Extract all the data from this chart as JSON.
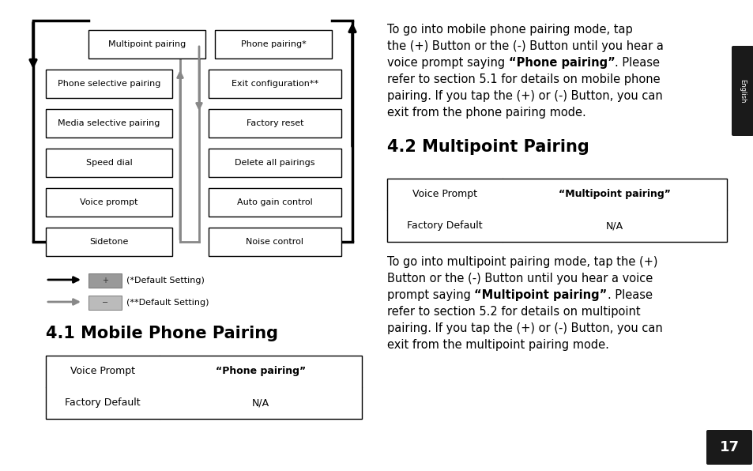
{
  "bg_color": "#ffffff",
  "left_labels": [
    "Multipoint pairing",
    "Phone selective pairing",
    "Media selective pairing",
    "Speed dial",
    "Voice prompt",
    "Sidetone"
  ],
  "right_labels": [
    "Phone pairing*",
    "Exit configuration**",
    "Factory reset",
    "Delete all pairings",
    "Auto gain control",
    "Noise control"
  ],
  "legend": [
    {
      "arrow_color": "#111111",
      "box_color": "#888888",
      "box_sign": "+",
      "text": "(*Default Setting)"
    },
    {
      "arrow_color": "#888888",
      "box_color": "#aaaaaa",
      "box_sign": "−",
      "text": "(**Default Setting)"
    }
  ],
  "section41_title": "4.1 Mobile Phone Pairing",
  "section42_title": "4.2 Multipoint Pairing",
  "table41_rows": [
    [
      "Voice Prompt",
      "“Phone pairing”"
    ],
    [
      "Factory Default",
      "N/A"
    ]
  ],
  "table42_rows": [
    [
      "Voice Prompt",
      "“Multipoint pairing”"
    ],
    [
      "Factory Default",
      "N/A"
    ]
  ],
  "para41_parts": [
    [
      {
        "text": "To go into mobile phone pairing mode, tap",
        "bold": false
      }
    ],
    [
      {
        "text": "the (+) Button or the (-) Button until you hear a",
        "bold": false
      }
    ],
    [
      {
        "text": "voice prompt saying ",
        "bold": false
      },
      {
        "text": "“Phone pairing”",
        "bold": true
      },
      {
        "text": ". Please",
        "bold": false
      }
    ],
    [
      {
        "text": "refer to section 5.1 for details on mobile phone",
        "bold": false
      }
    ],
    [
      {
        "text": "pairing. If you tap the (+) or (-) Button, you can",
        "bold": false
      }
    ],
    [
      {
        "text": "exit from the phone pairing mode.",
        "bold": false
      }
    ]
  ],
  "para42_parts": [
    [
      {
        "text": "To go into multipoint pairing mode, tap the (+)",
        "bold": false
      }
    ],
    [
      {
        "text": "Button or the (-) Button until you hear a voice",
        "bold": false
      }
    ],
    [
      {
        "text": "prompt saying ",
        "bold": false
      },
      {
        "text": "“Multipoint pairing”",
        "bold": true
      },
      {
        "text": ". Please",
        "bold": false
      }
    ],
    [
      {
        "text": "refer to section 5.2 for details on multipoint",
        "bold": false
      }
    ],
    [
      {
        "text": "pairing. If you tap the (+) or (-) Button, you can",
        "bold": false
      }
    ],
    [
      {
        "text": "exit from the multipoint pairing mode.",
        "bold": false
      }
    ]
  ],
  "english_tab": {
    "text": "English",
    "bg": "#1a1a1a",
    "fg": "#ffffff"
  },
  "page_num": {
    "text": "17",
    "bg": "#1a1a1a",
    "fg": "#ffffff"
  }
}
